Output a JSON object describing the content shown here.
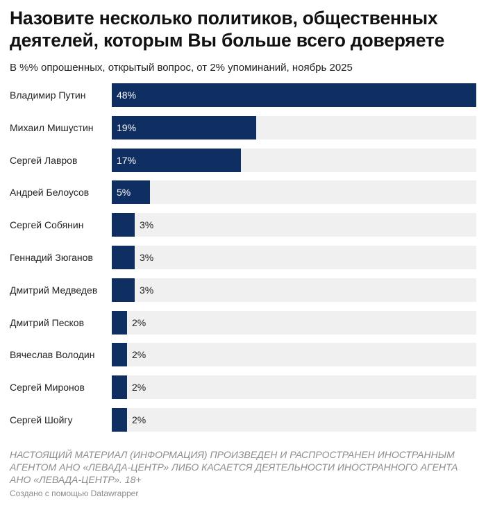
{
  "title": "Назовите несколько политиков, общественных деятелей, которым Вы больше всего доверяете",
  "subtitle": "В %% опрошенных, открытый вопрос, от 2% упоминаний, ноябрь 2025",
  "chart_data": {
    "type": "bar",
    "orientation": "horizontal",
    "categories": [
      "Владимир Путин",
      "Михаил Мишустин",
      "Сергей Лавров",
      "Андрей Белоусов",
      "Сергей Собянин",
      "Геннадий Зюганов",
      "Дмитрий Медведев",
      "Дмитрий Песков",
      "Вячеслав Володин",
      "Сергей Миронов",
      "Сергей Шойгу"
    ],
    "values": [
      48,
      19,
      17,
      5,
      3,
      3,
      3,
      2,
      2,
      2,
      2
    ],
    "value_labels": [
      "48%",
      "19%",
      "17%",
      "5%",
      "3%",
      "3%",
      "3%",
      "2%",
      "2%",
      "2%",
      "2%"
    ],
    "xlim": [
      0,
      48
    ],
    "bar_color": "#0f2f62",
    "track_color": "#f0f0f0"
  },
  "disclaimer": "НАСТОЯЩИЙ МАТЕРИАЛ (ИНФОРМАЦИЯ) ПРОИЗВЕДЕН И РАСПРОСТРАНЕН ИНОСТРАННЫМ АГЕНТОМ АНО «ЛЕВАДА-ЦЕНТР» ЛИБО КАСАЕТСЯ ДЕЯТЕЛЬНОСТИ ИНОСТРАННОГО АГЕНТА АНО «ЛЕВАДА-ЦЕНТР». 18+",
  "credit": "Создано с помощью Datawrapper"
}
